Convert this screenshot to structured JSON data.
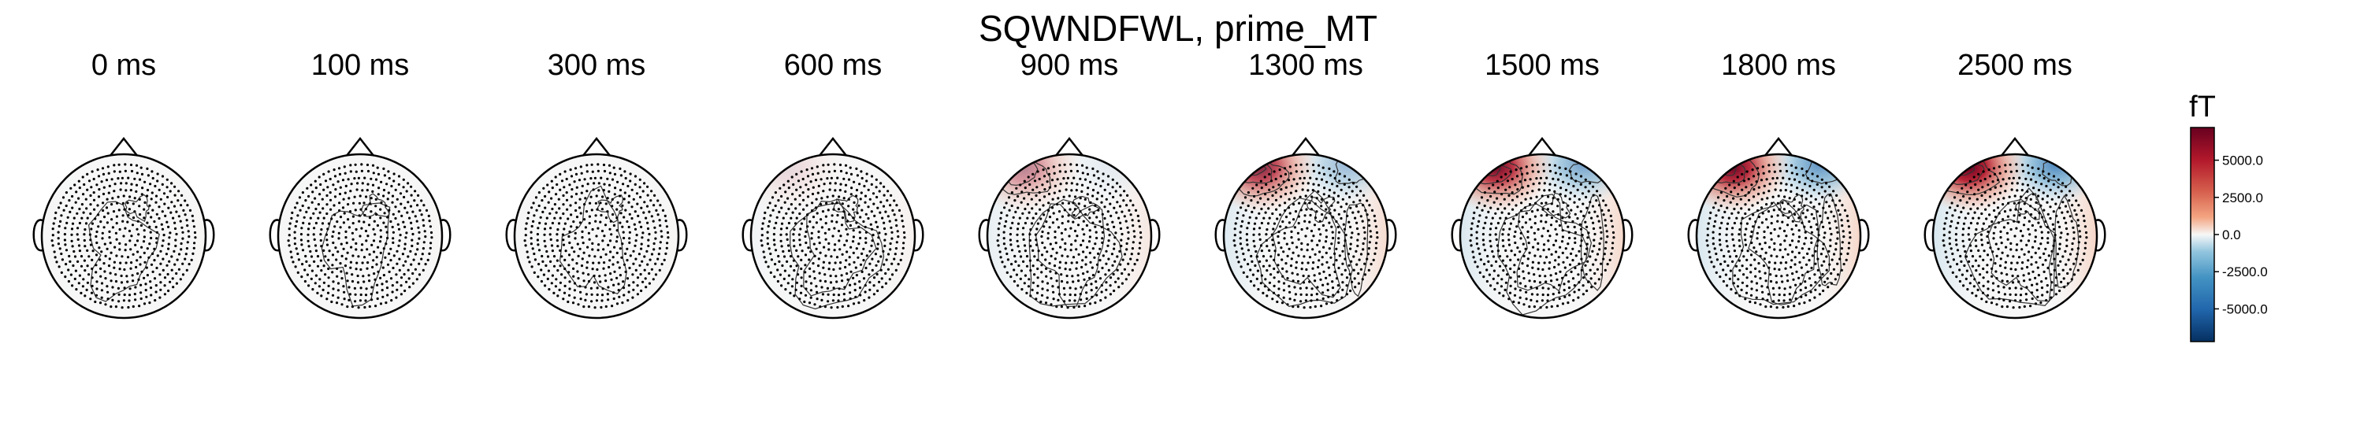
{
  "chart_data": {
    "type": "topomap",
    "title": "SQWNDFWL, prime_MT",
    "times": [
      "0 ms",
      "100 ms",
      "300 ms",
      "600 ms",
      "900 ms",
      "1300 ms",
      "1500 ms",
      "1800 ms",
      "2500 ms"
    ],
    "frontal_positive_intensity": [
      0.0,
      0.0,
      0.0,
      0.12,
      0.45,
      0.8,
      0.92,
      0.95,
      1.0
    ],
    "frontal_negative_intensity": [
      0.0,
      0.0,
      0.0,
      0.0,
      0.1,
      0.45,
      0.62,
      0.72,
      0.8
    ],
    "colorbar": {
      "unit": "fT",
      "ticks": [
        "5000.0",
        "2500.0",
        "0.0",
        "-2500.0",
        "-5000.0"
      ],
      "tick_values": [
        5000,
        2500,
        0,
        -2500,
        -5000
      ],
      "range": [
        -7200,
        7200
      ],
      "colormap": "RdBu_r"
    },
    "colors": {
      "max": "#67001f",
      "pos": "#d6604d",
      "neutral": "#f7f7f7",
      "neg": "#4393c3",
      "min": "#053061"
    }
  }
}
